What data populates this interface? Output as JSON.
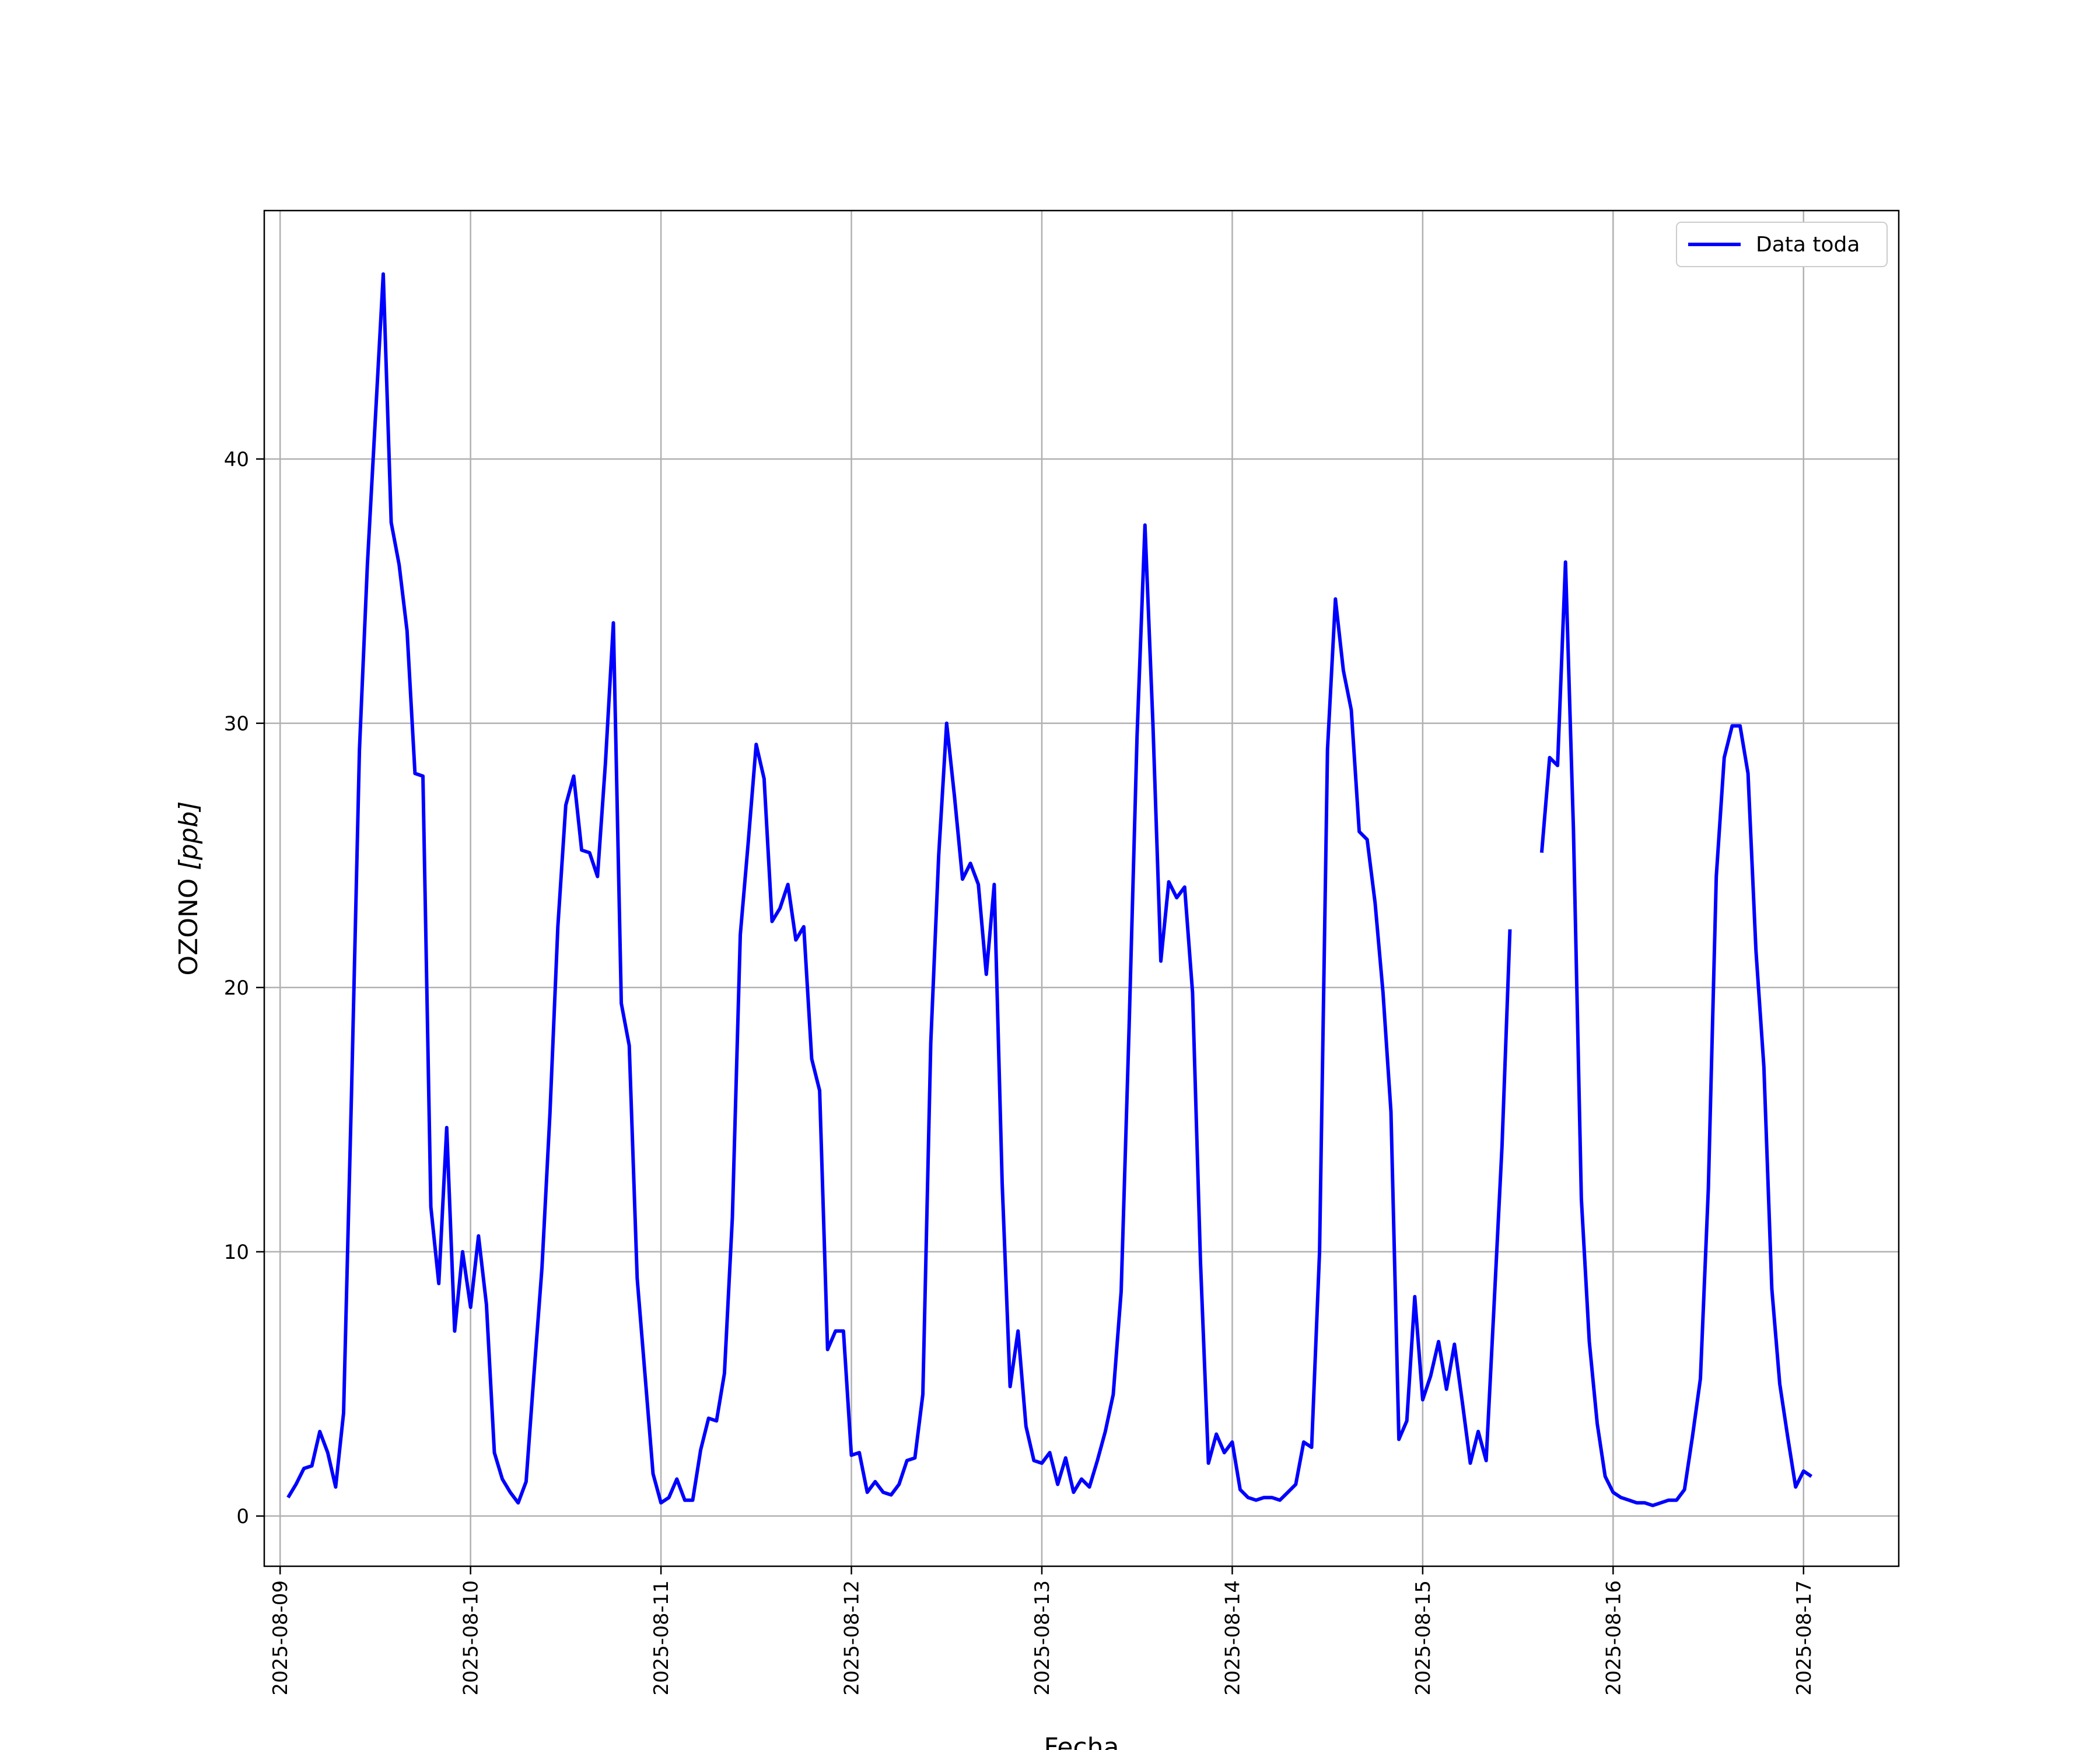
{
  "chart_data": {
    "type": "line",
    "title": "",
    "xlabel": "Fecha",
    "ylabel_text": "OZONO ",
    "ylabel_unit": "[ppb]",
    "x_type": "datetime",
    "xlim": [
      "2025-08-08 22:00",
      "2025-08-17 12:00"
    ],
    "ylim": [
      -1.9,
      49.4
    ],
    "x_ticks": [
      "2025-08-09",
      "2025-08-10",
      "2025-08-11",
      "2025-08-12",
      "2025-08-13",
      "2025-08-14",
      "2025-08-15",
      "2025-08-16",
      "2025-08-17"
    ],
    "y_ticks": [
      0,
      10,
      20,
      30,
      40
    ],
    "grid": true,
    "legend": {
      "position": "top-right",
      "entries": [
        "Data toda"
      ]
    },
    "series": [
      {
        "name": "Data toda",
        "color": "#0000ff",
        "start": "2025-08-09 01:00",
        "step_hours": 1,
        "values": [
          0.7,
          1.2,
          1.8,
          1.9,
          3.2,
          2.4,
          1.1,
          3.9,
          16,
          29,
          36,
          41.5,
          47,
          37.6,
          36,
          33.5,
          28.1,
          28,
          11.7,
          8.8,
          14.7,
          7,
          10,
          7.9,
          10.6,
          8,
          2.4,
          1.4,
          0.9,
          0.5,
          1.3,
          5.4,
          9.4,
          15.2,
          22.3,
          26.9,
          28,
          25.2,
          25.1,
          24.2,
          28.5,
          33.8,
          19.4,
          17.8,
          9,
          5.3,
          1.6,
          0.5,
          0.7,
          1.4,
          0.6,
          0.6,
          2.5,
          3.7,
          3.6,
          5.4,
          11.3,
          22,
          25.5,
          29.2,
          27.9,
          22.5,
          23,
          23.9,
          21.8,
          22.3,
          17.3,
          16.1,
          6.3,
          7,
          7,
          2.3,
          2.4,
          0.9,
          1.3,
          0.9,
          0.8,
          1.2,
          2.1,
          2.2,
          4.6,
          17.9,
          25,
          30,
          27.2,
          24.1,
          24.7,
          23.9,
          20.5,
          23.9,
          12.6,
          4.9,
          7,
          3.4,
          2.1,
          2,
          2.4,
          1.2,
          2.2,
          0.9,
          1.4,
          1.1,
          2.1,
          3.2,
          4.6,
          8.5,
          18.5,
          29.5,
          37.5,
          30,
          21,
          24,
          23.4,
          23.8,
          19.8,
          9.6,
          2,
          3.1,
          2.4,
          2.8,
          1,
          0.7,
          0.6,
          0.7,
          0.7,
          0.6,
          0.9,
          1.2,
          2.8,
          2.6,
          10,
          29,
          34.7,
          32,
          30.5,
          25.9,
          25.6,
          23.2,
          19.8,
          15.3,
          2.9,
          3.6,
          8.3,
          4.4,
          5.3,
          6.6,
          4.8,
          6.5,
          4.3,
          2,
          3.2,
          2.1,
          8,
          14,
          22.2,
          null,
          null,
          null,
          25.1,
          28.7,
          28.4,
          36.1,
          26,
          12,
          6.6,
          3.5,
          1.5,
          0.9,
          0.7,
          0.6,
          0.5,
          0.5,
          0.4,
          0.5,
          0.6,
          0.6,
          1,
          3,
          5.2,
          12.4,
          24.2,
          28.7,
          29.9,
          29.9,
          28.1,
          21.4,
          17,
          8.6,
          5,
          3,
          1.1,
          1.7,
          1.5
        ]
      }
    ]
  }
}
